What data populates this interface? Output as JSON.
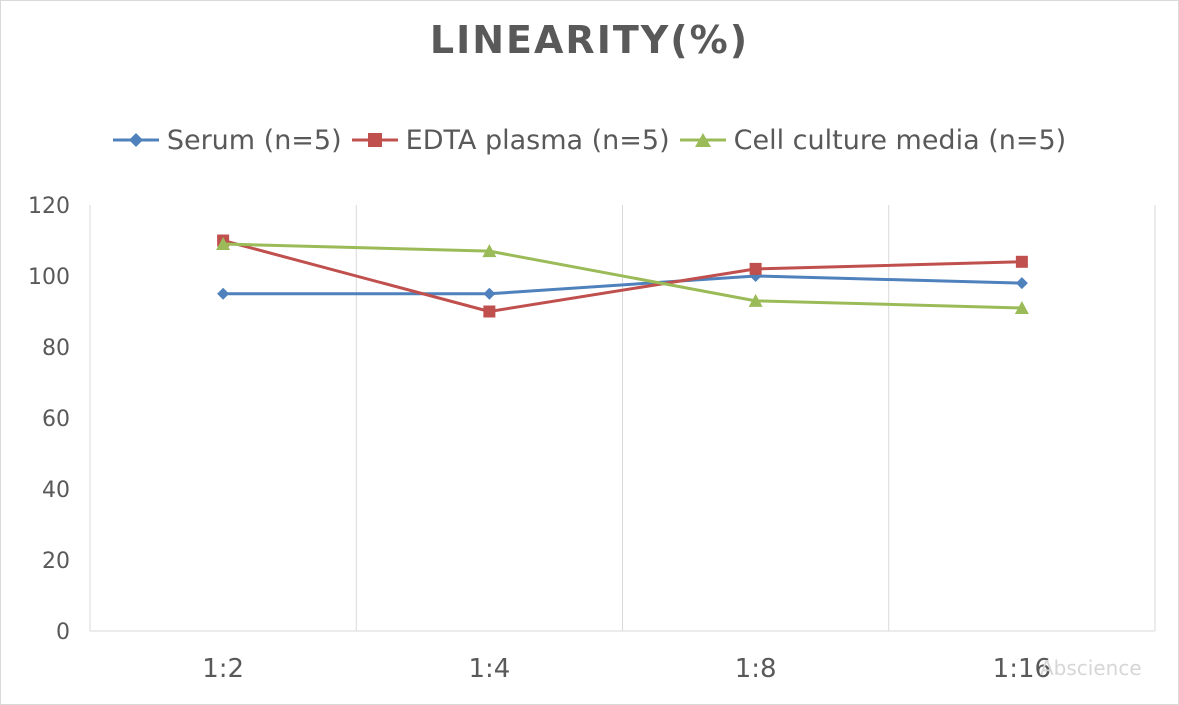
{
  "chart_data": {
    "type": "line",
    "title": "LINEARITY(%)",
    "categories": [
      "1:2",
      "1:4",
      "1:8",
      "1:16"
    ],
    "ylim": [
      0,
      120
    ],
    "yticks": [
      0,
      20,
      40,
      60,
      80,
      100,
      120
    ],
    "grid": "vertical",
    "legend": "top",
    "series": [
      {
        "name": "Serum (n=5)",
        "values": [
          95,
          95,
          100,
          98
        ],
        "color": "#4f81bd",
        "marker": "diamond"
      },
      {
        "name": "EDTA plasma (n=5)",
        "values": [
          110,
          90,
          102,
          104
        ],
        "color": "#c0504d",
        "marker": "square"
      },
      {
        "name": "Cell culture media (n=5)",
        "values": [
          109,
          107,
          93,
          91
        ],
        "color": "#9bbb59",
        "marker": "triangle"
      }
    ]
  },
  "watermark": "Abscience"
}
